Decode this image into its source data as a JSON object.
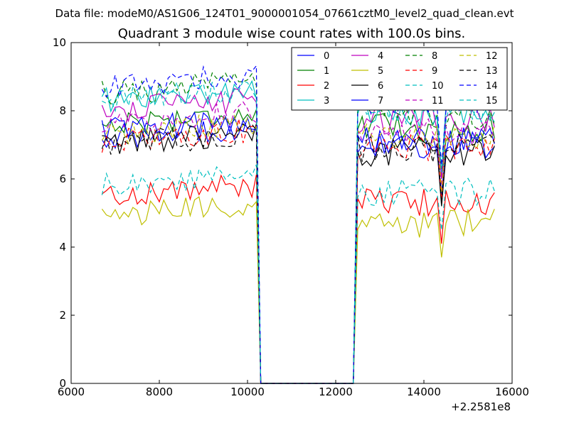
{
  "header": {
    "data_file_text": "Data file: modeM0/AS1G06_124T01_9000001054_07661cztM0_level2_quad_clean.evt"
  },
  "chart_data": {
    "type": "line",
    "title": "Quadrant 3 module wise count rates with 100.0s bins.",
    "xlabel": "",
    "ylabel": "",
    "x_offset_label": "+2.2581e8",
    "xlim": [
      6000,
      16000
    ],
    "ylim": [
      0,
      10
    ],
    "xticks": [
      6000,
      8000,
      10000,
      12000,
      14000,
      16000
    ],
    "xtick_labels": [
      "6000",
      "8000",
      "10000",
      "12000",
      "14000",
      "16000"
    ],
    "yticks": [
      0,
      2,
      4,
      6,
      8,
      10
    ],
    "ytick_labels": [
      "0",
      "2",
      "4",
      "6",
      "8",
      "10"
    ],
    "grid": false,
    "legend_position": "top-right",
    "legend_columns": 4,
    "series": [
      {
        "name": "0",
        "color": "#0000ff",
        "dash": "solid",
        "level1": 7.2,
        "level2": 7.0,
        "dip": 5.6
      },
      {
        "name": "1",
        "color": "#008000",
        "dash": "solid",
        "level1": 7.6,
        "level2": 7.5,
        "dip": 6.0
      },
      {
        "name": "2",
        "color": "#ff0000",
        "dash": "solid",
        "level1": 5.5,
        "level2": 5.3,
        "dip": 4.1
      },
      {
        "name": "3",
        "color": "#00bfbf",
        "dash": "solid",
        "level1": 8.3,
        "level2": 7.9,
        "dip": 6.2
      },
      {
        "name": "4",
        "color": "#bf00bf",
        "dash": "solid",
        "level1": 8.0,
        "level2": 7.7,
        "dip": 6.0
      },
      {
        "name": "5",
        "color": "#bfbf00",
        "dash": "solid",
        "level1": 4.9,
        "level2": 4.7,
        "dip": 3.7
      },
      {
        "name": "6",
        "color": "#000000",
        "dash": "solid",
        "level1": 7.0,
        "level2": 6.8,
        "dip": 5.2
      },
      {
        "name": "7",
        "color": "#0000ff",
        "dash": "solid",
        "level1": 7.4,
        "level2": 7.1,
        "dip": 5.5
      },
      {
        "name": "8",
        "color": "#008000",
        "dash": "dashed",
        "level1": 8.5,
        "level2": 7.9,
        "dip": 6.3
      },
      {
        "name": "9",
        "color": "#ff0000",
        "dash": "dashed",
        "level1": 7.1,
        "level2": 6.9,
        "dip": 5.4
      },
      {
        "name": "10",
        "color": "#00bfbf",
        "dash": "dashed",
        "level1": 5.8,
        "level2": 5.6,
        "dip": 4.5
      },
      {
        "name": "11",
        "color": "#bf00bf",
        "dash": "dashed",
        "level1": 7.6,
        "level2": 7.4,
        "dip": 5.8
      },
      {
        "name": "12",
        "color": "#bfbf00",
        "dash": "dashed",
        "level1": 7.3,
        "level2": 7.2,
        "dip": 5.6
      },
      {
        "name": "13",
        "color": "#000000",
        "dash": "dashed",
        "level1": 7.0,
        "level2": 6.9,
        "dip": 5.3
      },
      {
        "name": "14",
        "color": "#0000ff",
        "dash": "dashed",
        "level1": 8.7,
        "level2": 8.2,
        "dip": 6.4
      },
      {
        "name": "15",
        "color": "#00bfbf",
        "dash": "dashed",
        "level1": 8.3,
        "level2": 8.0,
        "dip": 6.2
      }
    ],
    "time_profile": {
      "x_start": 6700,
      "x_step": 100,
      "x_end": 15600,
      "gap_start": 10300,
      "gap_end": 12400,
      "dip_at": 14400
    }
  }
}
